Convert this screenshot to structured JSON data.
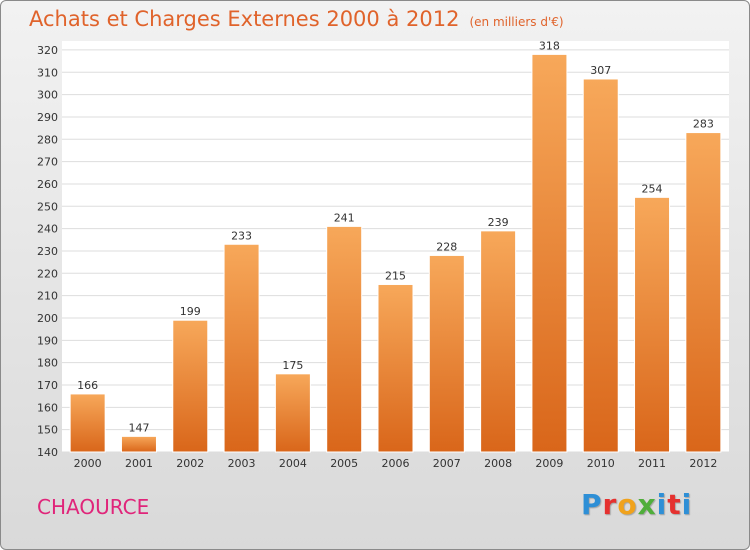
{
  "title": "Achats et Charges Externes 2000 à 2012",
  "subtitle": "(en milliers d'€)",
  "place": "CHAOURCE",
  "logo": {
    "letters": [
      "P",
      "r",
      "o",
      "x",
      "i",
      "t",
      "i"
    ],
    "colors": [
      "#2e8fd6",
      "#e5312f",
      "#f0a21c",
      "#4fae3a",
      "#2e8fd6",
      "#e5312f",
      "#2e8fd6"
    ]
  },
  "colors": {
    "bar": "#f07f2a",
    "title": "#e0632b",
    "place": "#e0257a"
  },
  "chart_data": {
    "type": "bar",
    "categories": [
      "2000",
      "2001",
      "2002",
      "2003",
      "2004",
      "2005",
      "2006",
      "2007",
      "2008",
      "2009",
      "2010",
      "2011",
      "2012"
    ],
    "values": [
      166,
      147,
      199,
      233,
      175,
      241,
      215,
      228,
      239,
      318,
      307,
      254,
      283
    ],
    "yticks": [
      140,
      150,
      160,
      170,
      180,
      190,
      200,
      210,
      220,
      230,
      240,
      250,
      260,
      270,
      280,
      290,
      300,
      310,
      320
    ],
    "ylim": [
      140,
      324
    ],
    "grid": true,
    "legend": "none"
  }
}
